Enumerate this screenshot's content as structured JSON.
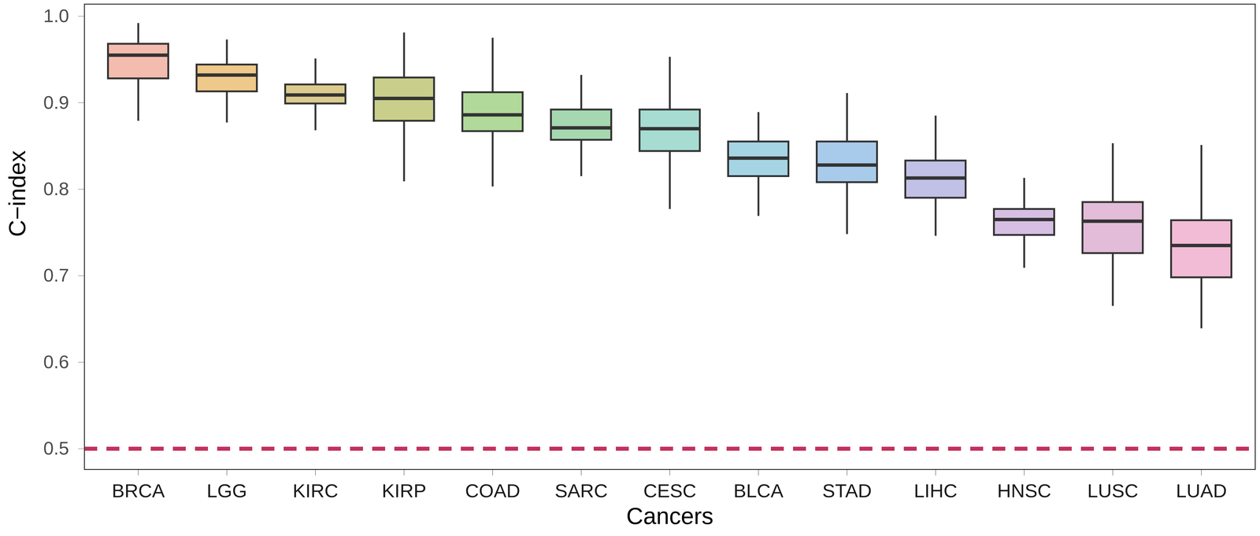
{
  "chart_data": {
    "type": "box",
    "xlabel": "Cancers",
    "ylabel": "C−index",
    "categories": [
      "BRCA",
      "LGG",
      "KIRC",
      "KIRP",
      "COAD",
      "SARC",
      "CESC",
      "BLCA",
      "STAD",
      "LIHC",
      "HNSC",
      "LUSC",
      "LUAD"
    ],
    "min": [
      0.879,
      0.877,
      0.868,
      0.809,
      0.803,
      0.815,
      0.777,
      0.769,
      0.748,
      0.746,
      0.709,
      0.665,
      0.639
    ],
    "q1": [
      0.928,
      0.913,
      0.899,
      0.879,
      0.867,
      0.857,
      0.844,
      0.815,
      0.808,
      0.79,
      0.747,
      0.726,
      0.698
    ],
    "median": [
      0.955,
      0.932,
      0.909,
      0.905,
      0.886,
      0.871,
      0.87,
      0.836,
      0.828,
      0.813,
      0.765,
      0.763,
      0.735
    ],
    "q3": [
      0.968,
      0.944,
      0.921,
      0.929,
      0.912,
      0.892,
      0.892,
      0.855,
      0.855,
      0.833,
      0.777,
      0.785,
      0.764
    ],
    "max": [
      0.992,
      0.973,
      0.951,
      0.981,
      0.975,
      0.932,
      0.953,
      0.889,
      0.911,
      0.885,
      0.813,
      0.853,
      0.851
    ],
    "colors": [
      "#f4bcae",
      "#efc98a",
      "#dccb8f",
      "#c9cf8a",
      "#b0d99a",
      "#a5d8b0",
      "#a6dcd1",
      "#a5d5e5",
      "#a9cbeb",
      "#c1c1e8",
      "#d7bfe3",
      "#e3bcd9",
      "#f2bcd6"
    ],
    "ylim": [
      0.476,
      1.014
    ],
    "yticks": [
      0.5,
      0.6,
      0.7,
      0.8,
      0.9,
      {
        "value": 1,
        "label": "1.0"
      }
    ],
    "hline": {
      "value": 0.5,
      "color": "#c2305c",
      "line_style": "dashed"
    },
    "grid": false
  }
}
